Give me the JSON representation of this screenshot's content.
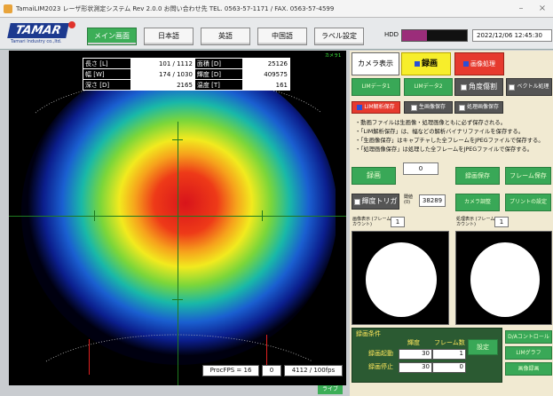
{
  "titlebar": {
    "text": "TamaiLIM2023 レーザ形状測定システム Rev 2.0.0 お問い合わせ先 TEL. 0563-57-1171 / FAX. 0563-57-4599",
    "minimize": "–",
    "close": "×"
  },
  "logo": {
    "brand": "TAMAR",
    "sub": "Tamari Industry co.,ltd."
  },
  "toolbar": {
    "tabs": [
      "メイン画面",
      "日本語",
      "英語",
      "中国語",
      "ラベル設定"
    ],
    "hdd_label": "HDD",
    "hdd_usage": 0.38,
    "datetime": "2022/12/06 12:45:30"
  },
  "measurements": {
    "rows": [
      [
        "長さ [L]",
        "101 / 1112",
        "面積 [D]",
        "25126"
      ],
      [
        "幅 [W]",
        "174 / 1030",
        "輝度 [D]",
        "409575"
      ],
      [
        "深さ [D]",
        "2165",
        "温度 [T]",
        "161"
      ]
    ]
  },
  "view": {
    "corner_label": "カメラ1",
    "fps_label": "ProcFPS = 16",
    "fps_value": "0",
    "frame_count": "4112 / 100fps",
    "live": "ライブ"
  },
  "panel": {
    "camera_label": "カメラ表示",
    "record_label": "録画",
    "image_process_label": "画像処理",
    "row2": [
      "LIMデータ1",
      "LIMデータ2",
      "角度傷割",
      "ベクトル処理"
    ],
    "row3": [
      "LIM解析保存",
      "生画像保存",
      "処理画像保存"
    ],
    "notes": [
      "・動画ファイルは生画像・処理画像ともに必ず保存される。",
      "・「LIM解析保存」は、幅などの解析バイナリファイルを保存する。",
      "・「生画像保存」はキャプチャした全フレームをJPEGファイルで保存する。",
      "・「処理画像保存」は処理した全フレームをJPEGファイルで保存する。"
    ],
    "record_btn": "録画",
    "record_count": "0",
    "rec_save": "録画保存",
    "frame_save": "フレーム保存",
    "trigger_label": "輝度トリガ",
    "threshold_label": "閾値 (0)",
    "threshold_value": "38289",
    "camera_adjust": "カメラ調整",
    "print_settings": "プリントの設定",
    "left_pane_label": "画像表示 (フレームカウント)",
    "left_pane_value": "1",
    "right_pane_label": "処理表示 (フレームカウント)",
    "right_pane_value": "1",
    "rec_condition": {
      "title": "録画条件",
      "col1": "輝度",
      "col2": "フレーム数",
      "start_label": "録画起動",
      "start_value": "30",
      "start_frames": "1",
      "stop_label": "録画停止",
      "stop_value": "30",
      "stop_frames": "0",
      "set_btn": "設定"
    },
    "side_btns": [
      "D/Aコントロール",
      "LIMグラフ",
      "画像録画"
    ]
  }
}
